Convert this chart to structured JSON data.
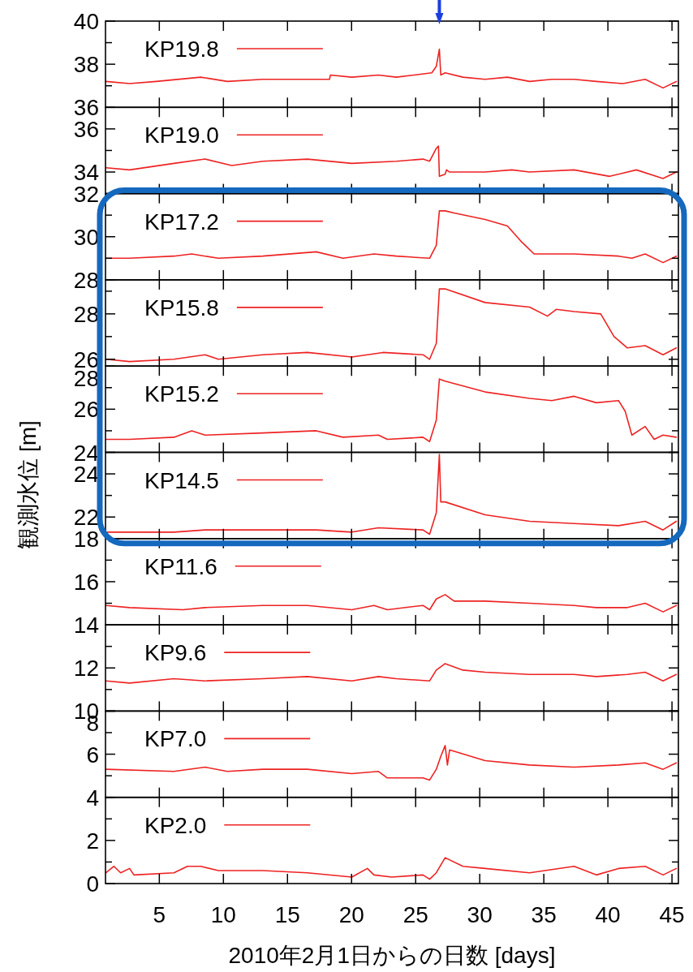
{
  "chart_data": [
    {
      "type": "line",
      "xlim": [
        0.8,
        45.5
      ],
      "xticks": [
        5,
        10,
        15,
        20,
        25,
        30,
        35,
        40,
        45
      ],
      "ylim": [
        36,
        40
      ],
      "yticks": [
        36,
        {
          "value": 37,
          "label": null
        },
        38,
        {
          "value": 39,
          "label": null
        },
        40
      ],
      "tick_labels": "y",
      "legend": "top left",
      "series": [
        {
          "name": "KP19.8",
          "color": "#ee2222",
          "x": [
            0.84,
            2.68,
            4.76,
            8.23,
            10.31,
            13.08,
            16.55,
            18.28,
            18.35,
            20.02,
            22.1,
            23.49,
            24.88,
            26.26,
            26.61,
            26.85,
            26.96,
            27.3,
            28.69,
            30.42,
            32.16,
            33.89,
            35.63,
            37.36,
            39.1,
            41.18,
            42.91,
            44.3,
            45.34
          ],
          "values": [
            37.2,
            37.1,
            37.2,
            37.4,
            37.2,
            37.3,
            37.3,
            37.3,
            37.5,
            37.4,
            37.5,
            37.4,
            37.5,
            37.6,
            37.9,
            38.7,
            37.5,
            37.6,
            37.4,
            37.3,
            37.4,
            37.2,
            37.3,
            37.3,
            37.2,
            37.1,
            37.3,
            36.9,
            37.2
          ]
        }
      ]
    },
    {
      "type": "line",
      "xlim": [
        0.8,
        45.5
      ],
      "xticks": [
        5,
        10,
        15,
        20,
        25,
        30,
        35,
        40,
        45
      ],
      "ylim": [
        33,
        37
      ],
      "yticks": [
        34,
        {
          "value": 35,
          "label": null
        },
        36
      ],
      "tick_labels": "y",
      "legend": "top left",
      "series": [
        {
          "name": "KP19.0",
          "color": "#ee2222",
          "x": [
            0.84,
            2.68,
            6.14,
            8.57,
            10.65,
            13.08,
            16.55,
            20.02,
            23.49,
            25.57,
            26.09,
            26.61,
            26.78,
            26.85,
            27.3,
            27.41,
            27.65,
            30.42,
            32.51,
            33.89,
            37.36,
            40.14,
            42.22,
            44.3,
            45.34
          ],
          "values": [
            34.2,
            34.1,
            34.4,
            34.6,
            34.3,
            34.5,
            34.6,
            34.4,
            34.5,
            34.6,
            34.5,
            35.1,
            35.2,
            33.8,
            33.9,
            34.1,
            34.0,
            34.0,
            34.1,
            34.0,
            34.1,
            33.8,
            34.1,
            33.7,
            34.0
          ]
        }
      ]
    },
    {
      "type": "line",
      "xlim": [
        0.8,
        45.5
      ],
      "xticks": [
        5,
        10,
        15,
        20,
        25,
        30,
        35,
        40,
        45
      ],
      "ylim": [
        28,
        32
      ],
      "yticks": [
        28,
        {
          "value": 29,
          "label": null
        },
        30,
        {
          "value": 31,
          "label": null
        },
        32
      ],
      "tick_labels": "y",
      "legend": "top left",
      "series": [
        {
          "name": "KP17.2",
          "color": "#ee2222",
          "x": [
            0.84,
            2.68,
            6.14,
            7.53,
            9.61,
            13.08,
            17.24,
            19.33,
            21.75,
            23.49,
            26.09,
            26.61,
            26.85,
            27.3,
            28.0,
            30.42,
            32.16,
            33.2,
            33.55,
            34.24,
            37.36,
            40.83,
            41.87,
            42.91,
            44.3,
            45.34
          ],
          "values": [
            29.0,
            29.0,
            29.1,
            29.2,
            29.0,
            29.1,
            29.3,
            29.0,
            29.2,
            29.1,
            29.0,
            29.6,
            31.2,
            31.2,
            31.1,
            30.8,
            30.5,
            29.8,
            29.6,
            29.2,
            29.2,
            29.1,
            29.0,
            29.2,
            28.8,
            29.1
          ]
        }
      ]
    },
    {
      "type": "line",
      "xlim": [
        0.8,
        45.5
      ],
      "xticks": [
        5,
        10,
        15,
        20,
        25,
        30,
        35,
        40,
        45
      ],
      "ylim": [
        25.7,
        29.5
      ],
      "yticks": [
        26,
        {
          "value": 27,
          "label": null
        },
        28,
        {
          "value": 29,
          "label": null
        }
      ],
      "tick_labels": "y",
      "legend": "top left",
      "series": [
        {
          "name": "KP15.8",
          "color": "#ee2222",
          "x": [
            0.84,
            2.68,
            6.14,
            8.57,
            9.61,
            13.08,
            16.55,
            20.02,
            22.45,
            25.57,
            26.09,
            26.61,
            26.85,
            27.3,
            30.42,
            33.89,
            35.28,
            35.97,
            37.36,
            39.44,
            40.48,
            41.52,
            42.91,
            44.3,
            45.34
          ],
          "values": [
            26.0,
            25.9,
            26.0,
            26.2,
            26.0,
            26.2,
            26.3,
            26.1,
            26.3,
            26.2,
            26.0,
            26.7,
            29.1,
            29.1,
            28.5,
            28.3,
            27.9,
            28.2,
            28.1,
            28.0,
            27.0,
            26.5,
            26.6,
            26.2,
            26.5
          ]
        }
      ]
    },
    {
      "type": "line",
      "xlim": [
        0.8,
        45.5
      ],
      "xticks": [
        5,
        10,
        15,
        20,
        25,
        30,
        35,
        40,
        45
      ],
      "ylim": [
        24,
        28
      ],
      "yticks": [
        24,
        {
          "value": 25,
          "label": null
        },
        26,
        {
          "value": 27,
          "label": null
        },
        28
      ],
      "tick_labels": "y",
      "legend": "top left",
      "series": [
        {
          "name": "KP15.2",
          "color": "#ee2222",
          "x": [
            0.84,
            2.68,
            6.14,
            7.53,
            8.57,
            13.08,
            17.24,
            19.33,
            22.1,
            22.79,
            25.57,
            26.09,
            26.61,
            26.85,
            27.3,
            30.42,
            33.89,
            35.63,
            37.36,
            39.1,
            40.83,
            41.35,
            41.87,
            42.91,
            43.61,
            44.3,
            45.34
          ],
          "values": [
            24.6,
            24.6,
            24.7,
            25.0,
            24.8,
            24.9,
            25.0,
            24.7,
            24.8,
            24.6,
            24.7,
            24.5,
            25.5,
            27.4,
            27.3,
            26.8,
            26.5,
            26.4,
            26.6,
            26.3,
            26.4,
            25.9,
            24.8,
            25.2,
            24.6,
            24.8,
            24.7
          ]
        }
      ]
    },
    {
      "type": "line",
      "xlim": [
        0.8,
        45.5
      ],
      "xticks": [
        5,
        10,
        15,
        20,
        25,
        30,
        35,
        40,
        45
      ],
      "ylim": [
        21,
        25
      ],
      "yticks": [
        22,
        {
          "value": 23,
          "label": null
        },
        24
      ],
      "tick_labels": "y",
      "legend": "top left",
      "ylabel": "観測水位 [m]",
      "series": [
        {
          "name": "KP14.5",
          "color": "#ee2222",
          "x": [
            0.84,
            6.14,
            8.57,
            13.08,
            17.24,
            20.02,
            22.1,
            25.57,
            26.09,
            26.61,
            26.85,
            26.96,
            27.3,
            30.42,
            33.89,
            37.36,
            40.83,
            42.91,
            44.3,
            45.34
          ],
          "values": [
            21.3,
            21.3,
            21.4,
            21.4,
            21.4,
            21.3,
            21.5,
            21.4,
            21.2,
            22.2,
            24.9,
            22.7,
            22.7,
            22.1,
            21.8,
            21.7,
            21.6,
            21.8,
            21.4,
            21.8
          ]
        }
      ]
    },
    {
      "type": "line",
      "xlim": [
        0.8,
        45.5
      ],
      "xticks": [
        5,
        10,
        15,
        20,
        25,
        30,
        35,
        40,
        45
      ],
      "ylim": [
        14,
        18
      ],
      "yticks": [
        {
          "value": 14,
          "label": null
        },
        {
          "value": 15,
          "label": null
        },
        16,
        {
          "value": 17,
          "label": null
        },
        18
      ],
      "tick_labels": "y",
      "legend": "top left",
      "series": [
        {
          "name": "KP11.6",
          "color": "#ee2222",
          "x": [
            0.84,
            2.68,
            6.84,
            8.57,
            13.08,
            16.55,
            20.02,
            21.75,
            22.79,
            25.57,
            26.09,
            26.61,
            27.3,
            28.0,
            30.42,
            33.89,
            37.36,
            39.1,
            41.52,
            42.91,
            44.3,
            45.34
          ],
          "values": [
            14.9,
            14.8,
            14.7,
            14.8,
            14.9,
            14.9,
            14.7,
            14.9,
            14.7,
            14.9,
            14.7,
            15.2,
            15.4,
            15.1,
            15.1,
            15.0,
            14.9,
            14.8,
            14.8,
            15.0,
            14.6,
            14.9
          ]
        }
      ]
    },
    {
      "type": "line",
      "xlim": [
        0.8,
        45.5
      ],
      "xticks": [
        5,
        10,
        15,
        20,
        25,
        30,
        35,
        40,
        45
      ],
      "ylim": [
        10,
        14
      ],
      "yticks": [
        10,
        {
          "value": 11,
          "label": null
        },
        12,
        {
          "value": 13,
          "label": null
        },
        14
      ],
      "tick_labels": "y",
      "legend": "top left",
      "series": [
        {
          "name": "KP9.6",
          "color": "#ee2222",
          "x": [
            0.84,
            2.68,
            6.14,
            8.57,
            13.08,
            16.55,
            20.02,
            22.1,
            23.49,
            26.09,
            26.61,
            27.3,
            28.69,
            30.42,
            33.89,
            37.36,
            39.1,
            41.52,
            42.91,
            44.3,
            45.34
          ],
          "values": [
            11.4,
            11.3,
            11.5,
            11.4,
            11.5,
            11.6,
            11.4,
            11.6,
            11.5,
            11.4,
            11.9,
            12.2,
            11.9,
            11.8,
            11.7,
            11.7,
            11.6,
            11.7,
            11.8,
            11.4,
            11.7
          ]
        }
      ]
    },
    {
      "type": "line",
      "xlim": [
        0.8,
        45.5
      ],
      "xticks": [
        5,
        10,
        15,
        20,
        25,
        30,
        35,
        40,
        45
      ],
      "ylim": [
        4,
        8
      ],
      "yticks": [
        4,
        {
          "value": 5,
          "label": null
        },
        6,
        {
          "value": 7,
          "label": null
        },
        8
      ],
      "tick_labels": "y",
      "legend": "top left",
      "series": [
        {
          "name": "KP7.0",
          "color": "#ee2222",
          "x": [
            0.84,
            6.14,
            8.57,
            10.31,
            13.08,
            16.55,
            20.02,
            22.1,
            22.79,
            25.57,
            26.09,
            26.61,
            26.96,
            27.3,
            27.48,
            27.65,
            30.42,
            33.89,
            37.36,
            40.83,
            42.91,
            44.3,
            45.34
          ],
          "values": [
            5.3,
            5.2,
            5.4,
            5.2,
            5.3,
            5.3,
            5.1,
            5.2,
            4.9,
            4.9,
            4.8,
            5.3,
            5.9,
            6.4,
            5.5,
            6.2,
            5.7,
            5.5,
            5.4,
            5.5,
            5.6,
            5.3,
            5.6
          ]
        }
      ]
    },
    {
      "type": "line",
      "xlim": [
        0.8,
        45.5
      ],
      "xticks": [
        5,
        10,
        15,
        20,
        25,
        30,
        35,
        40,
        45
      ],
      "ylim": [
        0,
        4
      ],
      "yticks": [
        0,
        {
          "value": 1,
          "label": null
        },
        2,
        {
          "value": 3,
          "label": null
        },
        {
          "value": 4,
          "label": null
        }
      ],
      "legend": "top left",
      "xlabel": "2010年2月1日からの日数 [days]",
      "series": [
        {
          "name": "KP2.0",
          "color": "#ee2222",
          "x": [
            0.84,
            1.46,
            1.98,
            2.68,
            3.02,
            6.14,
            7.19,
            8.23,
            9.61,
            13.08,
            16.55,
            20.02,
            21.23,
            21.75,
            23.14,
            25.57,
            26.09,
            26.61,
            27.3,
            28.69,
            30.42,
            33.89,
            37.36,
            39.1,
            40.83,
            42.91,
            44.3,
            45.34
          ],
          "values": [
            0.5,
            0.8,
            0.5,
            0.7,
            0.4,
            0.5,
            0.8,
            0.8,
            0.6,
            0.6,
            0.5,
            0.3,
            0.7,
            0.4,
            0.3,
            0.4,
            0.2,
            0.5,
            1.2,
            0.8,
            0.7,
            0.5,
            0.8,
            0.4,
            0.7,
            0.8,
            0.4,
            0.7
          ]
        }
      ]
    }
  ]
}
